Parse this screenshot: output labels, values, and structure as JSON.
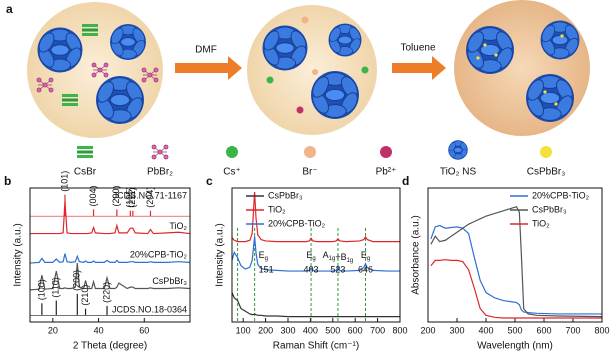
{
  "panel_a": {
    "label": "a",
    "steps": [
      "DMF",
      "Toluene"
    ],
    "legend": [
      "CsBr",
      "PbBr₂",
      "Cs⁺",
      "Br⁻",
      "Pb²⁺",
      "TiO₂ NS",
      "CsPbBr₃"
    ]
  },
  "chart_data": [
    {
      "type": "line",
      "label": "b",
      "xlabel": "2 Theta (degree)",
      "ylabel": "Intensity (a.u.)",
      "legend": false,
      "xlim": [
        10,
        80
      ],
      "xticks": [
        20,
        40,
        60
      ],
      "ylim": [
        0,
        10
      ],
      "x": [
        10,
        14,
        15.2,
        16.5,
        20,
        21.5,
        23,
        24.5,
        25.3,
        26.2,
        28,
        29.8,
        30.7,
        31.6,
        33.5,
        34.3,
        35.2,
        37,
        37.8,
        38.6,
        42.5,
        43.7,
        45,
        47.2,
        48,
        48.9,
        52.5,
        53.9,
        55,
        56,
        61.5,
        62.7,
        64,
        70,
        75,
        80
      ],
      "series": [
        {
          "name": "TiO₂",
          "color": "#e0262a",
          "values": [
            6.6,
            6.6,
            6.6,
            6.6,
            6.6,
            6.6,
            6.6,
            6.65,
            9.0,
            6.65,
            6.6,
            6.6,
            6.6,
            6.6,
            6.6,
            6.6,
            6.6,
            6.65,
            7.05,
            6.65,
            6.6,
            6.6,
            6.6,
            6.65,
            7.2,
            6.65,
            6.65,
            7.0,
            7.0,
            6.65,
            6.6,
            6.9,
            6.6,
            6.65,
            6.7,
            6.6
          ]
        },
        {
          "name": "20%CPB-TiO₂",
          "color": "#2f6fd6",
          "values": [
            4.4,
            4.45,
            4.75,
            4.45,
            4.45,
            4.7,
            4.45,
            4.5,
            5.1,
            4.5,
            4.45,
            4.5,
            4.9,
            4.5,
            4.45,
            4.55,
            4.45,
            4.45,
            4.55,
            4.45,
            4.45,
            4.6,
            4.45,
            4.45,
            4.6,
            4.45,
            4.45,
            4.5,
            4.5,
            4.45,
            4.45,
            4.5,
            4.45,
            4.45,
            4.5,
            4.45
          ]
        },
        {
          "name": "CsPbBr₃",
          "color": "#555555",
          "values": [
            2.4,
            2.45,
            3.5,
            2.45,
            2.5,
            3.8,
            2.5,
            2.5,
            2.55,
            2.5,
            2.5,
            2.6,
            4.4,
            2.6,
            2.5,
            3.1,
            2.5,
            2.5,
            3.0,
            2.5,
            2.5,
            3.3,
            2.5,
            2.5,
            2.6,
            2.9,
            2.5,
            2.6,
            2.6,
            2.5,
            2.5,
            2.55,
            2.5,
            2.5,
            2.55,
            2.5
          ]
        }
      ],
      "sticks": [
        {
          "name": "JCDS.NO.71-1167",
          "color": "#e0262a",
          "offset": 7.9,
          "x": [
            25.3,
            37.8,
            48,
            53.9,
            55,
            62.7
          ],
          "values": [
            1.6,
            0.5,
            0.5,
            0.4,
            0.4,
            0.4
          ],
          "labels": [
            "(101)",
            "(004)",
            "(200)",
            "(105)",
            "(211)",
            "(204)"
          ]
        },
        {
          "name": "JCDS.NO.18-0364",
          "color": "#222222",
          "offset": 0.5,
          "x": [
            15.2,
            21.5,
            30.7,
            34.3,
            43.7
          ],
          "values": [
            0.9,
            1.1,
            1.6,
            0.5,
            0.7
          ],
          "labels": [
            "(100)",
            "(110)",
            "(200)",
            "(210)",
            "(220)"
          ]
        }
      ]
    },
    {
      "type": "line",
      "label": "c",
      "xlabel": "Raman Shift (cm⁻¹)",
      "ylabel": "Intensity (a.u.)",
      "legend": "upper left",
      "xlim": [
        50,
        800
      ],
      "xticks": [
        100,
        200,
        300,
        400,
        500,
        600,
        700,
        800
      ],
      "ylim": [
        0,
        10
      ],
      "x": [
        50,
        60,
        75,
        90,
        110,
        130,
        140,
        145,
        151,
        157,
        165,
        180,
        200,
        250,
        300,
        380,
        395,
        403,
        411,
        430,
        500,
        515,
        523,
        531,
        560,
        620,
        638,
        646,
        654,
        680,
        750,
        800
      ],
      "series": [
        {
          "name": "CsPbBr₃",
          "color": "#333333",
          "values": [
            2.2,
            1.8,
            1.6,
            1.0,
            0.8,
            0.6,
            0.55,
            0.55,
            0.6,
            0.55,
            0.5,
            0.5,
            0.45,
            0.45,
            0.4,
            0.4,
            0.4,
            0.4,
            0.4,
            0.4,
            0.4,
            0.4,
            0.4,
            0.4,
            0.4,
            0.4,
            0.4,
            0.4,
            0.4,
            0.4,
            0.4,
            0.4
          ]
        },
        {
          "name": "TiO₂",
          "color": "#e0262a",
          "values": [
            6.3,
            6.1,
            6.0,
            6.0,
            6.0,
            6.1,
            6.6,
            8.0,
            9.7,
            7.8,
            6.5,
            6.15,
            6.05,
            6.0,
            6.0,
            6.0,
            6.05,
            6.25,
            6.05,
            6.0,
            6.0,
            6.05,
            6.2,
            6.05,
            6.0,
            6.05,
            6.15,
            6.35,
            6.15,
            6.0,
            6.0,
            6.0
          ]
        },
        {
          "name": "20%CPB-TiO₂",
          "color": "#2f6fd6",
          "values": [
            4.6,
            5.2,
            4.8,
            4.2,
            3.95,
            4.1,
            4.6,
            5.4,
            6.4,
            5.2,
            4.3,
            4.0,
            3.9,
            3.85,
            3.8,
            3.8,
            3.85,
            4.05,
            3.85,
            3.8,
            3.8,
            3.85,
            4.1,
            3.85,
            3.8,
            3.85,
            4.05,
            4.35,
            4.05,
            3.85,
            3.8,
            3.8
          ]
        }
      ],
      "guides": {
        "color": "#2e9a3c",
        "x": [
          75,
          151,
          403,
          523,
          646
        ]
      },
      "peak_labels": [
        {
          "x": 151,
          "parts": [
            [
              "E",
              "g"
            ]
          ]
        },
        {
          "x": 403,
          "parts": [
            [
              "E",
              "g"
            ]
          ]
        },
        {
          "x": 523,
          "parts": [
            [
              "A",
              "1g"
            ],
            [
              "+B",
              "1g"
            ]
          ]
        },
        {
          "x": 646,
          "parts": [
            [
              "E",
              "g"
            ]
          ]
        }
      ]
    },
    {
      "type": "line",
      "label": "d",
      "xlabel": "Wavelength (nm)",
      "ylabel": "Absorbance (a.u.)",
      "legend": "upper right",
      "xlim": [
        200,
        800
      ],
      "xticks": [
        200,
        300,
        400,
        500,
        600,
        700,
        800
      ],
      "ylim": [
        0,
        10
      ],
      "x": [
        210,
        225,
        240,
        260,
        280,
        300,
        320,
        340,
        360,
        380,
        400,
        430,
        460,
        490,
        505,
        515,
        522,
        530,
        545,
        575,
        650,
        800
      ],
      "series": [
        {
          "name": "20%CPB-TiO₂",
          "color": "#2f6fd6",
          "values": [
            6.2,
            7.1,
            7.2,
            7.0,
            7.05,
            7.1,
            7.0,
            6.6,
            4.8,
            3.1,
            2.2,
            1.8,
            1.6,
            1.5,
            1.45,
            1.3,
            0.9,
            0.75,
            0.7,
            0.65,
            0.6,
            0.6
          ]
        },
        {
          "name": "CsPbBr₃",
          "color": "#555555",
          "values": [
            5.8,
            6.4,
            6.0,
            6.1,
            6.4,
            6.7,
            7.0,
            7.3,
            7.5,
            7.7,
            7.9,
            8.1,
            8.3,
            8.5,
            8.6,
            8.2,
            5.0,
            1.0,
            0.6,
            0.5,
            0.45,
            0.4
          ]
        },
        {
          "name": "TiO₂",
          "color": "#e0262a",
          "values": [
            4.2,
            4.6,
            4.6,
            4.65,
            4.6,
            4.6,
            4.5,
            3.9,
            2.5,
            1.0,
            0.5,
            0.35,
            0.3,
            0.3,
            0.3,
            0.3,
            0.3,
            0.3,
            0.3,
            0.3,
            0.3,
            0.3
          ]
        }
      ]
    }
  ]
}
